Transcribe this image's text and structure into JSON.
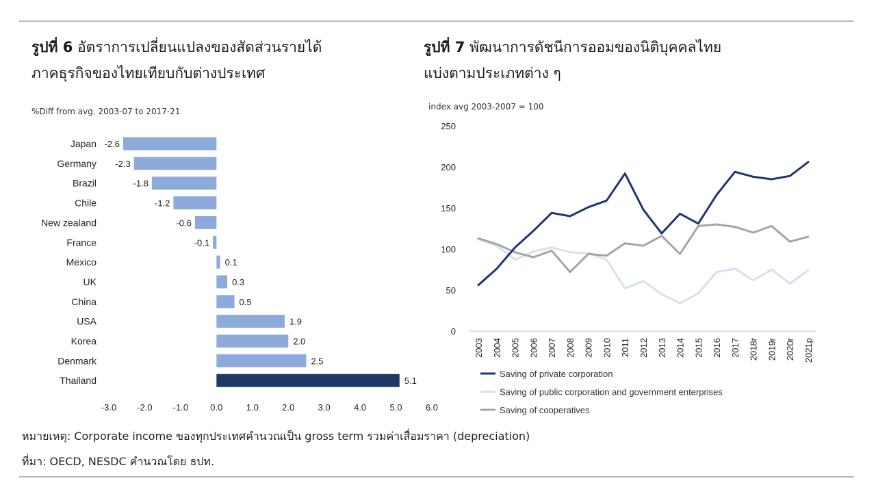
{
  "fig6": {
    "title_num": "รูปที่ 6",
    "title_line1": "อัตราการเปลี่ยนแปลงของสัดส่วนรายได้",
    "title_line2": "ภาคธุรกิจของไทยเทียบกับต่างประเทศ",
    "unit": "%Diff from avg. 2003-07 to 2017-21"
  },
  "fig7": {
    "title_num": "รูปที่ 7",
    "title_line1": "พัฒนาการดัชนีการออมของนิติบุคคลไทย",
    "title_line2": "แบ่งตามประเภทต่าง ๆ",
    "unit": "index avg 2003-2007 = 100"
  },
  "footer": {
    "note": "หมายเหตุ: Corporate income ของทุกประเทศคำนวณเป็น gross term รวมค่าเสื่อมราคา (depreciation)",
    "source": "ที่มา: OECD, NESDC คำนวณโดย ธปท."
  },
  "chart_data": [
    {
      "type": "bar",
      "orientation": "horizontal",
      "categories": [
        "Japan",
        "Germany",
        "Brazil",
        "Chile",
        "New zealand",
        "France",
        "Mexico",
        "UK",
        "China",
        "USA",
        "Korea",
        "Denmark",
        "Thailand"
      ],
      "values": [
        -2.6,
        -2.3,
        -1.8,
        -1.2,
        -0.6,
        -0.1,
        0.1,
        0.3,
        0.5,
        1.9,
        2.0,
        2.5,
        5.1
      ],
      "value_labels": [
        "-2.6",
        "-2.3",
        "-1.8",
        "-1.2",
        "-0.6",
        "-0.1",
        "0.1",
        "0.3",
        "0.5",
        "1.9",
        "2.0",
        "2.5",
        "5.1"
      ],
      "xlim": [
        -3.0,
        6.0
      ],
      "xticks": [
        "-3.0",
        "-2.0",
        "-1.0",
        "0.0",
        "1.0",
        "2.0",
        "3.0",
        "4.0",
        "5.0",
        "6.0"
      ],
      "bar_color": "#8eaadb",
      "highlight": {
        "category": "Thailand",
        "color": "#203864"
      },
      "grid": false
    },
    {
      "type": "line",
      "x": [
        "2003",
        "2004",
        "2005",
        "2006",
        "2007",
        "2008",
        "2009",
        "2010",
        "2011",
        "2012",
        "2013",
        "2014",
        "2015",
        "2016",
        "2017",
        "2018r",
        "2019r",
        "2020r",
        "2021p"
      ],
      "ylim": [
        0,
        250
      ],
      "yticks": [
        "0",
        "50",
        "100",
        "150",
        "200",
        "250"
      ],
      "grid": false,
      "legend_position": "bottom",
      "series": [
        {
          "name": "Saving of private corporation",
          "color": "#1f3471",
          "values": [
            56,
            76,
            102,
            122,
            144,
            140,
            151,
            159,
            192,
            148,
            119,
            143,
            131,
            166,
            194,
            188,
            185,
            189,
            206
          ]
        },
        {
          "name": "Saving of public corporation and government enterprises",
          "color": "#d6e0f0",
          "values": [
            112,
            104,
            87,
            97,
            102,
            96,
            95,
            87,
            52,
            61,
            45,
            34,
            46,
            72,
            76,
            62,
            75,
            58,
            74
          ]
        },
        {
          "name": "Saving of cooperatives",
          "color": "#a5a5a5",
          "values": [
            113,
            106,
            96,
            90,
            98,
            72,
            94,
            92,
            107,
            104,
            116,
            94,
            128,
            130,
            127,
            120,
            128,
            109,
            115
          ]
        }
      ]
    }
  ]
}
